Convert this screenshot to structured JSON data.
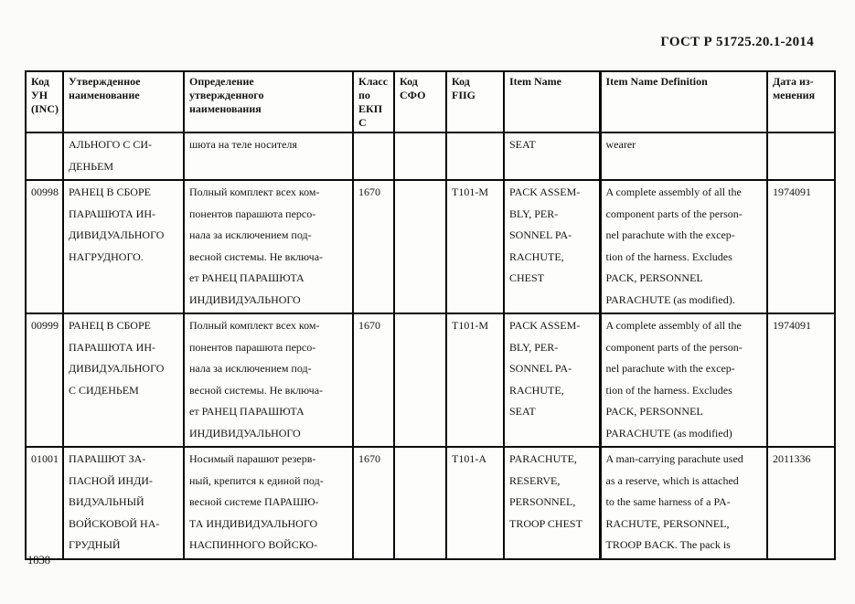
{
  "page": {
    "doc_number": "ГОСТ Р 51725.20.1-2014",
    "page_number": "1838"
  },
  "table": {
    "columns": [
      {
        "key": "inc_code",
        "label": "Код\nУН\n(INC)"
      },
      {
        "key": "approved_name",
        "label": "Утвержденное\nнаименование"
      },
      {
        "key": "approved_name_definition",
        "label": "Определение\nутвержденного\nнаименования"
      },
      {
        "key": "ekps_class",
        "label": "Класс\nпо\nЕКП\nС"
      },
      {
        "key": "sfo_code",
        "label": "Код\nСФО"
      },
      {
        "key": "fiig_code",
        "label": "Код\nFIIG"
      },
      {
        "key": "item_name",
        "label": "Item Name"
      },
      {
        "key": "item_name_definition",
        "label": "Item Name Definition"
      },
      {
        "key": "change_date",
        "label": "Дата из-\nменения"
      }
    ],
    "rows": [
      {
        "cells": [
          "",
          "АЛЬНОГО С СИ-\nДЕНЬЕМ",
          "шюта на теле носителя",
          "",
          "",
          "",
          "SEAT",
          "wearer",
          ""
        ]
      },
      {
        "cells": [
          "00998",
          "РАНЕЦ В СБОРЕ\nПАРАШЮТА ИН-\nДИВИДУАЛЬНОГО\nНАГРУДНОГО.",
          "Полный комплект всех ком-\nпонентов парашюта персо-\nнала за исключением под-\nвесной системы. Не включа-\nет РАНЕЦ ПАРАШЮТА\nИНДИВИДУАЛЬНОГО",
          "1670",
          "",
          "T101-M",
          "PACK ASSEM-\nBLY, PER-\nSONNEL PA-\nRACHUTE,\nCHEST",
          "A complete assembly of all the\ncomponent parts of the person-\nnel parachute with the excep-\ntion of the harness. Excludes\nPACK, PERSONNEL\nPARACHUTE (as modified).",
          "1974091"
        ]
      },
      {
        "cells": [
          "00999",
          "РАНЕЦ В СБОРЕ\nПАРАШЮТА ИН-\nДИВИДУАЛЬНОГО\nС СИДЕНЬЕМ",
          "Полный комплект всех ком-\nпонентов парашюта персо-\nнала за исключением под-\nвесной системы. Не включа-\nет РАНЕЦ ПАРАШЮТА\nИНДИВИДУАЛЬНОГО",
          "1670",
          "",
          "T101-M",
          "PACK ASSEM-\nBLY, PER-\nSONNEL PA-\nRACHUTE,\nSEAT",
          "A complete assembly of all the\ncomponent parts of the person-\nnel parachute with the excep-\ntion of the harness. Excludes\nPACK, PERSONNEL\nPARACHUTE (as modified)",
          "1974091"
        ]
      },
      {
        "cells": [
          "01001",
          "ПАРАШЮТ ЗА-\nПАСНОЙ ИНДИ-\nВИДУАЛЬНЫЙ\nВОЙСКОВОЙ НА-\nГРУДНЫЙ",
          "Носимый парашют резерв-\nный, крепится к единой под-\nвесной системе ПАРАШЮ-\nТА ИНДИВИДУАЛЬНОГО\nНАСПИННОГО ВОЙСКО-",
          "1670",
          "",
          "T101-A",
          "PARACHUTE,\nRESERVE,\nPERSONNEL,\nTROOP CHEST",
          "A man-carrying parachute used\nas a reserve, which is attached\nto the same harness of a PA-\nRACHUTE, PERSONNEL,\nTROOP BACK. The pack is",
          "2011336"
        ]
      }
    ]
  }
}
